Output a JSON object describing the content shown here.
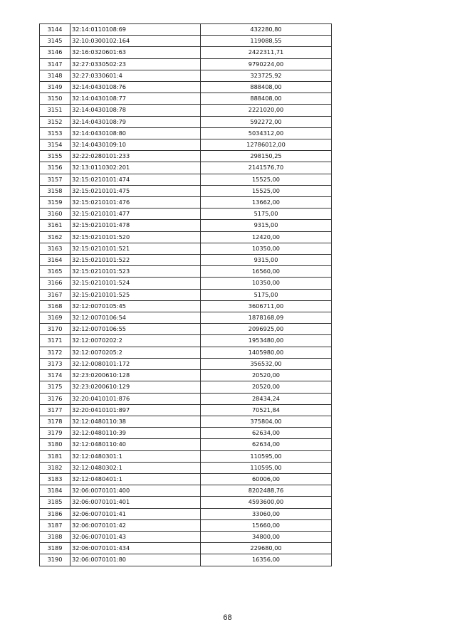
{
  "table": {
    "rows": [
      [
        "3144",
        "32:14:0110108:69",
        "432280,80"
      ],
      [
        "3145",
        "32:10:0300102:164",
        "119088,55"
      ],
      [
        "3146",
        "32:16:0320601:63",
        "2422311,71"
      ],
      [
        "3147",
        "32:27:0330502:23",
        "9790224,00"
      ],
      [
        "3148",
        "32:27:0330601:4",
        "323725,92"
      ],
      [
        "3149",
        "32:14:0430108:76",
        "888408,00"
      ],
      [
        "3150",
        "32:14:0430108:77",
        "888408,00"
      ],
      [
        "3151",
        "32:14:0430108:78",
        "2221020,00"
      ],
      [
        "3152",
        "32:14:0430108:79",
        "592272,00"
      ],
      [
        "3153",
        "32:14:0430108:80",
        "5034312,00"
      ],
      [
        "3154",
        "32:14:0430109:10",
        "12786012,00"
      ],
      [
        "3155",
        "32:22:0280101:233",
        "298150,25"
      ],
      [
        "3156",
        "32:13:0110302:201",
        "2141576,70"
      ],
      [
        "3157",
        "32:15:0210101:474",
        "15525,00"
      ],
      [
        "3158",
        "32:15:0210101:475",
        "15525,00"
      ],
      [
        "3159",
        "32:15:0210101:476",
        "13662,00"
      ],
      [
        "3160",
        "32:15:0210101:477",
        "5175,00"
      ],
      [
        "3161",
        "32:15:0210101:478",
        "9315,00"
      ],
      [
        "3162",
        "32:15:0210101:520",
        "12420,00"
      ],
      [
        "3163",
        "32:15:0210101:521",
        "10350,00"
      ],
      [
        "3164",
        "32:15:0210101:522",
        "9315,00"
      ],
      [
        "3165",
        "32:15:0210101:523",
        "16560,00"
      ],
      [
        "3166",
        "32:15:0210101:524",
        "10350,00"
      ],
      [
        "3167",
        "32:15:0210101:525",
        "5175,00"
      ],
      [
        "3168",
        "32:12:0070105:45",
        "3606711,00"
      ],
      [
        "3169",
        "32:12:0070106:54",
        "1878168,09"
      ],
      [
        "3170",
        "32:12:0070106:55",
        "2096925,00"
      ],
      [
        "3171",
        "32:12:0070202:2",
        "1953480,00"
      ],
      [
        "3172",
        "32:12:0070205:2",
        "1405980,00"
      ],
      [
        "3173",
        "32:12:0080101:172",
        "356532,00"
      ],
      [
        "3174",
        "32:23:0200610:128",
        "20520,00"
      ],
      [
        "3175",
        "32:23:0200610:129",
        "20520,00"
      ],
      [
        "3176",
        "32:20:0410101:876",
        "28434,24"
      ],
      [
        "3177",
        "32:20:0410101:897",
        "70521,84"
      ],
      [
        "3178",
        "32:12:0480110:38",
        "375804,00"
      ],
      [
        "3179",
        "32:12:0480110:39",
        "62634,00"
      ],
      [
        "3180",
        "32:12:0480110:40",
        "62634,00"
      ],
      [
        "3181",
        "32:12:0480301:1",
        "110595,00"
      ],
      [
        "3182",
        "32:12:0480302:1",
        "110595,00"
      ],
      [
        "3183",
        "32:12:0480401:1",
        "60006,00"
      ],
      [
        "3184",
        "32:06:0070101:400",
        "8202488,76"
      ],
      [
        "3185",
        "32:06:0070101:401",
        "4593600,00"
      ],
      [
        "3186",
        "32:06:0070101:41",
        "33060,00"
      ],
      [
        "3187",
        "32:06:0070101:42",
        "15660,00"
      ],
      [
        "3188",
        "32:06:0070101:43",
        "34800,00"
      ],
      [
        "3189",
        "32:06:0070101:434",
        "229680,00"
      ],
      [
        "3190",
        "32:06:0070101:80",
        "16356,00"
      ]
    ]
  },
  "footer": {
    "page_number": "68"
  }
}
